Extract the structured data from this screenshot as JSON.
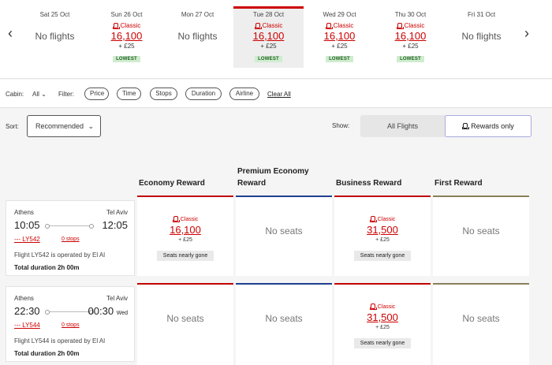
{
  "date_bar": {
    "prev_icon": "chevron-left-icon",
    "next_icon": "chevron-right-icon",
    "days": [
      {
        "date": "Sat 25 Oct",
        "no_flights": "No flights"
      },
      {
        "date": "Sun 26 Oct",
        "cabin": "Classic",
        "points": "16,100",
        "tax": "+ £25",
        "badge": "LOWEST"
      },
      {
        "date": "Mon 27 Oct",
        "no_flights": "No flights"
      },
      {
        "date": "Tue 28 Oct",
        "cabin": "Classic",
        "points": "16,100",
        "tax": "+ £25",
        "badge": "LOWEST",
        "selected": true
      },
      {
        "date": "Wed 29 Oct",
        "cabin": "Classic",
        "points": "16,100",
        "tax": "+ £25",
        "badge": "LOWEST"
      },
      {
        "date": "Thu 30 Oct",
        "cabin": "Classic",
        "points": "16,100",
        "tax": "+ £25",
        "badge": "LOWEST"
      },
      {
        "date": "Fri 31 Oct",
        "no_flights": "No flights"
      }
    ]
  },
  "filters": {
    "cabin_label": "Cabin:",
    "cabin_value": "All",
    "filter_label": "Filter:",
    "pills": [
      "Price",
      "Time",
      "Stops",
      "Duration",
      "Airline"
    ],
    "clear_all": "Clear All"
  },
  "sort": {
    "label": "Sort:",
    "value": "Recommended",
    "show_label": "Show:",
    "all_flights": "All Flights",
    "rewards_only": "Rewards only"
  },
  "cabins": [
    {
      "name": "Economy Reward",
      "color": "#c00000"
    },
    {
      "name": "Premium Economy Reward",
      "color": "#1f3f8f"
    },
    {
      "name": "Business Reward",
      "color": "#c00000"
    },
    {
      "name": "First Reward",
      "color": "#8a7f5a"
    }
  ],
  "flights": [
    {
      "from": "Athens",
      "to": "Tel Aviv",
      "dep": "10:05",
      "arr": "12:05",
      "arr_day": "",
      "flight_no": "LY542",
      "stops": "0 stops",
      "operated": "Flight LY542 is operated by El Al",
      "duration": "Total duration 2h 00m",
      "fares": [
        {
          "cabin": "Classic",
          "points": "16,100",
          "tax": "+ £25",
          "note": "Seats nearly gone"
        },
        {
          "none": "No seats"
        },
        {
          "cabin": "Classic",
          "points": "31,500",
          "tax": "+ £25",
          "note": "Seats nearly gone"
        },
        {
          "none": "No seats"
        }
      ]
    },
    {
      "from": "Athens",
      "to": "Tel Aviv",
      "dep": "22:30",
      "arr": "00:30",
      "arr_day": "Wed",
      "flight_no": "LY544",
      "stops": "0 stops",
      "operated": "Flight LY544 is operated by El Al",
      "duration": "Total duration 2h 00m",
      "fares": [
        {
          "none": "No seats"
        },
        {
          "none": "No seats"
        },
        {
          "cabin": "Classic",
          "points": "31,500",
          "tax": "+ £25",
          "note": "Seats nearly gone"
        },
        {
          "none": "No seats"
        }
      ]
    }
  ]
}
